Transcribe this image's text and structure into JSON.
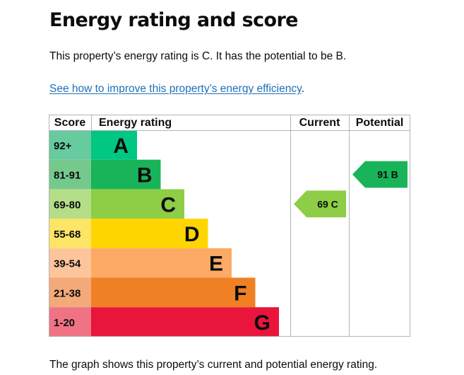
{
  "page": {
    "title": "Energy rating and score",
    "summary": "This property’s energy rating is C. It has the potential to be B.",
    "improve_link": "See how to improve this property’s energy efficiency",
    "improve_suffix": ".",
    "caption": "The graph shows this property’s current and potential energy rating."
  },
  "chart_data": {
    "type": "bar",
    "columns": {
      "score": "Score",
      "rating": "Energy rating",
      "current": "Current",
      "potential": "Potential"
    },
    "bands": [
      {
        "score": "92+",
        "letter": "A",
        "min": 92,
        "max": 100,
        "color": "#00c781",
        "score_bg": "#67cba0"
      },
      {
        "score": "81-91",
        "letter": "B",
        "min": 81,
        "max": 91,
        "color": "#19b459",
        "score_bg": "#76c98d"
      },
      {
        "score": "69-80",
        "letter": "C",
        "min": 69,
        "max": 80,
        "color": "#8dce46",
        "score_bg": "#b4de88"
      },
      {
        "score": "55-68",
        "letter": "D",
        "min": 55,
        "max": 68,
        "color": "#ffd500",
        "score_bg": "#fde565"
      },
      {
        "score": "39-54",
        "letter": "E",
        "min": 39,
        "max": 54,
        "color": "#fcaa65",
        "score_bg": "#fdc59b"
      },
      {
        "score": "21-38",
        "letter": "F",
        "min": 21,
        "max": 38,
        "color": "#ef8023",
        "score_bg": "#f3a97a"
      },
      {
        "score": "1-20",
        "letter": "G",
        "min": 1,
        "max": 20,
        "color": "#e9153b",
        "score_bg": "#ef7383"
      }
    ],
    "current": {
      "value": 69,
      "letter": "C",
      "label": "69 C",
      "color": "#8dce46"
    },
    "potential": {
      "value": 91,
      "letter": "B",
      "label": "91 B",
      "color": "#19b459"
    }
  }
}
